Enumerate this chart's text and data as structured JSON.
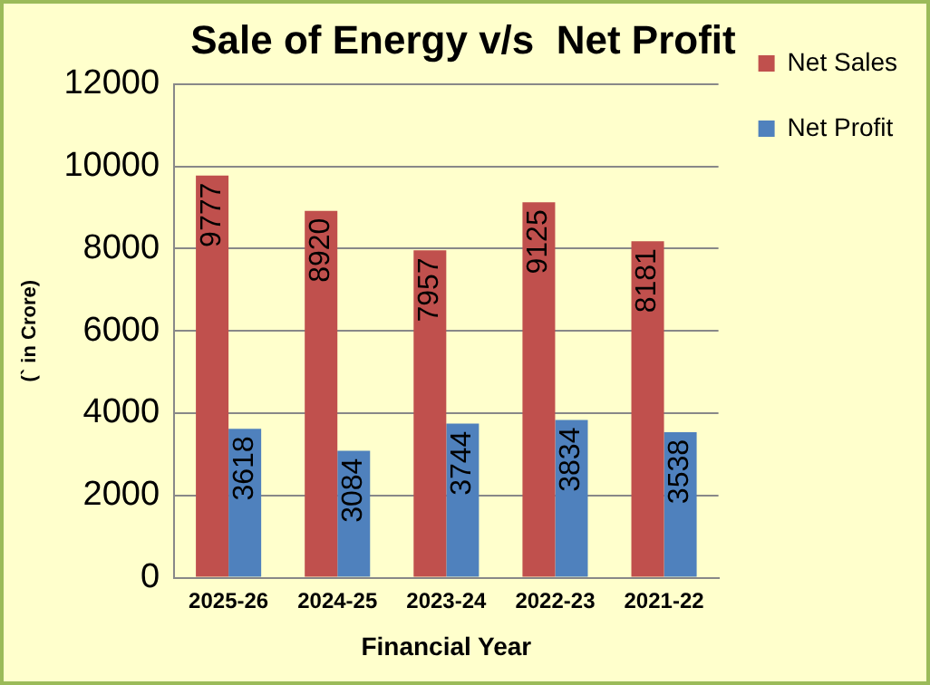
{
  "chart_data": {
    "type": "bar",
    "title": "Sale of Energy v/s  Net Profit",
    "xlabel": "Financial Year",
    "ylabel": "(` in Crore)",
    "categories": [
      "2025-26",
      "2024-25",
      "2023-24",
      "2022-23",
      "2021-22"
    ],
    "series": [
      {
        "name": "Net Sales",
        "color": "#c0504d",
        "values": [
          9777,
          8920,
          7957,
          9125,
          8181
        ]
      },
      {
        "name": "Net Profit",
        "color": "#4f81bd",
        "values": [
          3618,
          3084,
          3744,
          3834,
          3538
        ]
      }
    ],
    "ylim": [
      0,
      12000
    ],
    "yticks": [
      0,
      2000,
      4000,
      6000,
      8000,
      10000,
      12000
    ],
    "grid": "y",
    "legend": "top right",
    "data_labels": true
  }
}
